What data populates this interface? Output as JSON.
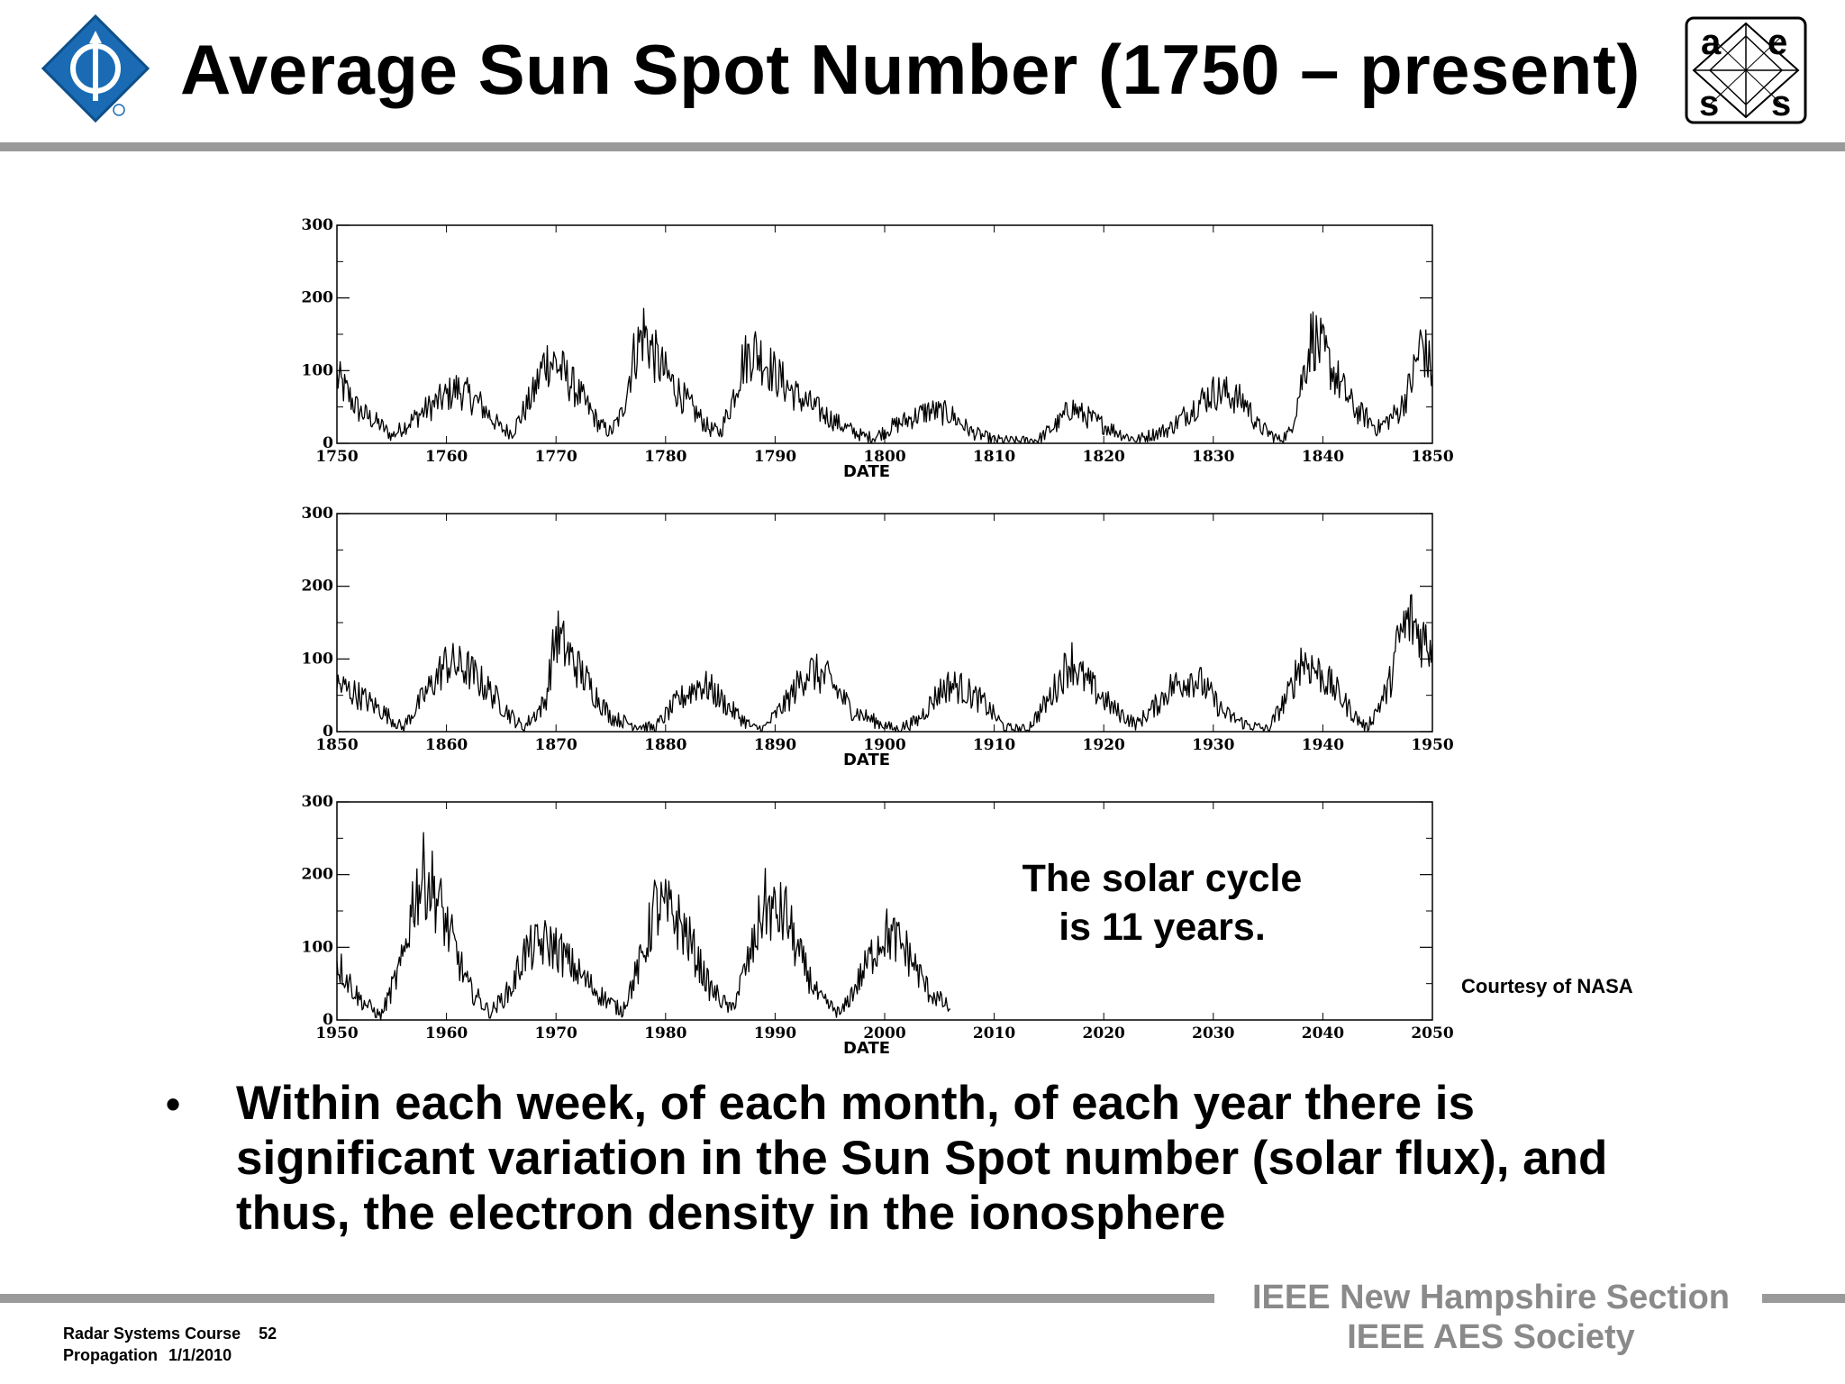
{
  "slide": {
    "title": "Average Sun Spot Number (1750 – present)",
    "annotation_line1": "The solar cycle",
    "annotation_line2": "is 11 years.",
    "courtesy": "Courtesy of NASA",
    "bullet": "Within each week, of each month, of each year there is significant variation in the Sun Spot number (solar flux), and thus, the electron density in the ionosphere",
    "footer": {
      "course": "Radar Systems Course",
      "page": "52",
      "topic": "Propagation",
      "date": "1/1/2010",
      "section": "IEEE New Hampshire Section",
      "society": "IEEE AES Society"
    },
    "logos": {
      "ieee": "IEEE diamond logo",
      "aes": "AES logo",
      "aes_letters": [
        "a",
        "e",
        "s",
        "s"
      ]
    },
    "colors": {
      "rule": "#9a9a9a",
      "footer_text": "#8a8a8a",
      "ieee_blue": "#1a6bb3",
      "line": "#000000"
    }
  },
  "chart_data": [
    {
      "type": "line",
      "xlabel": "DATE",
      "xlim": [
        1750,
        1850
      ],
      "ylim": [
        0,
        300
      ],
      "xticks": [
        1750,
        1760,
        1770,
        1780,
        1790,
        1800,
        1810,
        1820,
        1830,
        1840,
        1850
      ],
      "yticks": [
        0,
        100,
        200,
        300
      ],
      "series": [
        {
          "x": [
            1750,
            1752,
            1754,
            1755,
            1758,
            1761,
            1763,
            1765,
            1766,
            1768,
            1769,
            1770,
            1772,
            1774,
            1775,
            1776,
            1777,
            1778,
            1779,
            1780,
            1782,
            1784,
            1785,
            1786,
            1787,
            1788,
            1789,
            1790,
            1792,
            1794,
            1796,
            1798,
            1799,
            1801,
            1804,
            1806,
            1808,
            1810,
            1812,
            1814,
            1816,
            1817,
            1818,
            1820,
            1822,
            1823,
            1826,
            1829,
            1830,
            1831,
            1833,
            1834,
            1836,
            1837,
            1838,
            1839,
            1840,
            1842,
            1843,
            1844,
            1845,
            1847,
            1848,
            1849,
            1850
          ],
          "y": [
            90,
            45,
            25,
            10,
            45,
            75,
            55,
            20,
            15,
            70,
            115,
            110,
            70,
            25,
            15,
            40,
            115,
            155,
            120,
            95,
            55,
            20,
            15,
            55,
            110,
            130,
            115,
            95,
            65,
            45,
            25,
            10,
            8,
            25,
            45,
            40,
            15,
            5,
            3,
            5,
            30,
            50,
            40,
            25,
            10,
            5,
            20,
            60,
            70,
            70,
            55,
            25,
            5,
            15,
            80,
            150,
            125,
            70,
            45,
            35,
            20,
            45,
            80,
            140,
            95
          ]
        }
      ]
    },
    {
      "type": "line",
      "xlabel": "DATE",
      "xlim": [
        1850,
        1950
      ],
      "ylim": [
        0,
        300
      ],
      "xticks": [
        1850,
        1860,
        1870,
        1880,
        1890,
        1900,
        1910,
        1920,
        1930,
        1940,
        1950
      ],
      "yticks": [
        0,
        100,
        200,
        300
      ],
      "series": [
        {
          "x": [
            1850,
            1852,
            1854,
            1856,
            1858,
            1860,
            1862,
            1864,
            1866,
            1867,
            1869,
            1870,
            1871,
            1873,
            1875,
            1877,
            1879,
            1881,
            1883,
            1884,
            1886,
            1888,
            1889,
            1891,
            1893,
            1895,
            1897,
            1899,
            1901,
            1903,
            1905,
            1906,
            1907,
            1909,
            1911,
            1913,
            1915,
            1917,
            1918,
            1919,
            1921,
            1923,
            1925,
            1926,
            1928,
            1929,
            1931,
            1933,
            1935,
            1937,
            1938,
            1939,
            1941,
            1943,
            1944,
            1946,
            1947,
            1948,
            1949,
            1950
          ],
          "y": [
            65,
            50,
            30,
            5,
            50,
            95,
            85,
            55,
            20,
            5,
            40,
            135,
            110,
            65,
            20,
            10,
            5,
            40,
            65,
            60,
            30,
            5,
            5,
            40,
            85,
            70,
            30,
            15,
            3,
            15,
            55,
            65,
            60,
            40,
            5,
            3,
            45,
            100,
            75,
            60,
            30,
            10,
            40,
            60,
            75,
            65,
            25,
            10,
            3,
            55,
            100,
            90,
            60,
            20,
            5,
            60,
            130,
            155,
            130,
            120
          ]
        }
      ]
    },
    {
      "type": "line",
      "xlabel": "DATE",
      "xlim": [
        1950,
        2050
      ],
      "ylim": [
        0,
        300
      ],
      "xticks": [
        1950,
        1960,
        1970,
        1980,
        1990,
        2000,
        2010,
        2020,
        2030,
        2040,
        2050
      ],
      "yticks": [
        0,
        100,
        200,
        300
      ],
      "series": [
        {
          "x": [
            1950,
            1952,
            1954,
            1956,
            1957,
            1958,
            1959,
            1960,
            1962,
            1964,
            1966,
            1967,
            1968,
            1969,
            1970,
            1972,
            1974,
            1976,
            1978,
            1979,
            1980,
            1981,
            1982,
            1984,
            1986,
            1988,
            1989,
            1990,
            1991,
            1992,
            1994,
            1996,
            1998,
            1999,
            2000,
            2001,
            2002,
            2004,
            2006
          ],
          "y": [
            80,
            30,
            5,
            80,
            170,
            200,
            175,
            130,
            45,
            10,
            45,
            90,
            100,
            105,
            100,
            65,
            35,
            12,
            90,
            155,
            150,
            140,
            115,
            45,
            13,
            100,
            160,
            145,
            145,
            95,
            30,
            8,
            65,
            95,
            120,
            110,
            95,
            40,
            15
          ]
        }
      ]
    }
  ]
}
